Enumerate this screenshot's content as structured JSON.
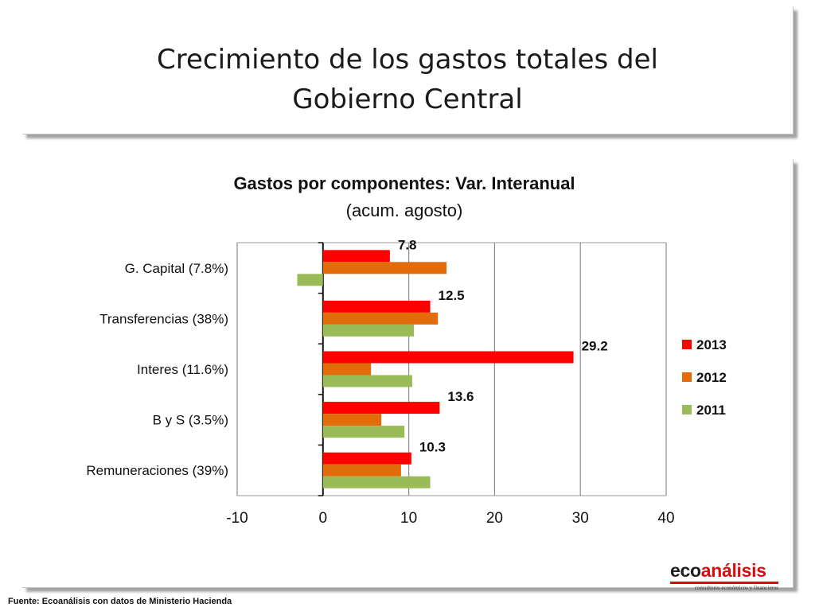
{
  "slide": {
    "title_line1": "Crecimiento de los gastos totales del",
    "title_line2": "Gobierno Central",
    "source": "Fuente: Ecoanálisis con datos de Ministerio Hacienda"
  },
  "logo": {
    "word_part1": "eco",
    "word_part2": "análisis",
    "tagline": "consultores económicos y financieros"
  },
  "chart_data": {
    "type": "bar",
    "orientation": "horizontal",
    "title_line1": "Gastos por componentes: Var. Interanual",
    "title_line2": "(acum. agosto)",
    "categories": [
      "G. Capital (7.8%)",
      "Transferencias (38%)",
      "Interes (11.6%)",
      "B y S (3.5%)",
      "Remuneraciones (39%)"
    ],
    "series": [
      {
        "name": "2013",
        "color": "#ff0000",
        "values": [
          7.8,
          12.5,
          29.2,
          13.6,
          10.3
        ],
        "labels": [
          "7.8",
          "12.5",
          "29.2",
          "13.6",
          "10.3"
        ]
      },
      {
        "name": "2012",
        "color": "#e36c0a",
        "values": [
          14.4,
          13.4,
          5.6,
          6.8,
          9.1
        ]
      },
      {
        "name": "2011",
        "color": "#9bbb59",
        "values": [
          -3.0,
          10.6,
          10.4,
          9.5,
          12.5
        ]
      }
    ],
    "x_ticks": [
      "-10",
      "0",
      "10",
      "20",
      "30",
      "40"
    ],
    "xlim": [
      -10,
      40
    ],
    "grid": true,
    "legend_position": "right"
  }
}
